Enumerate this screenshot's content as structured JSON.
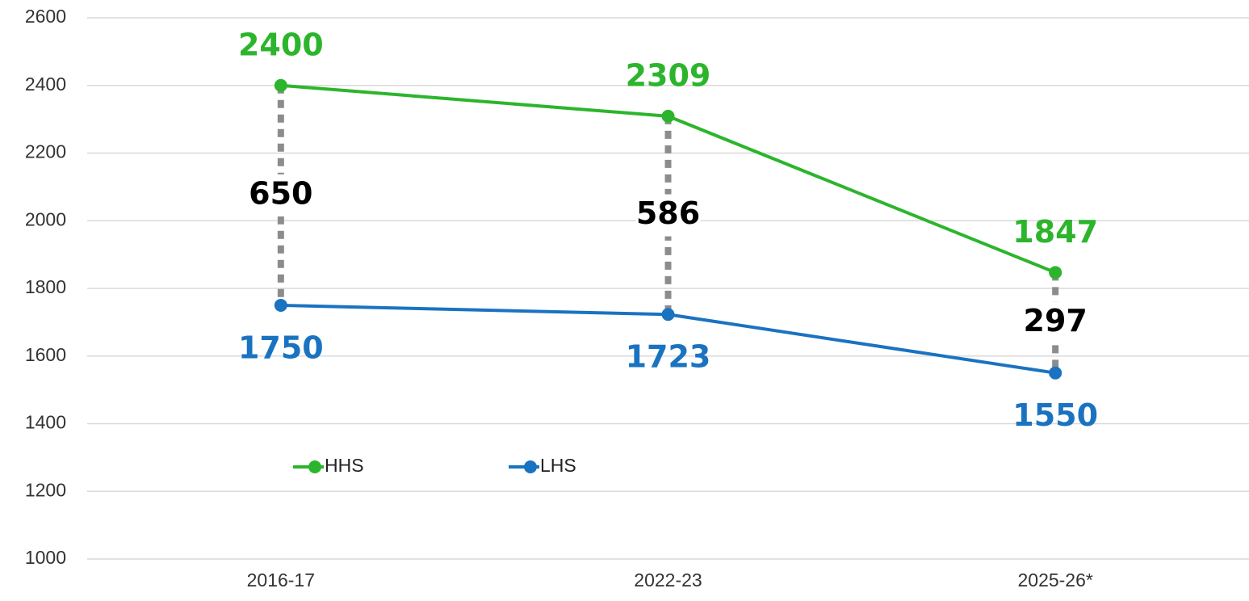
{
  "chart_data": {
    "type": "line",
    "categories": [
      "2016-17",
      "2022-23",
      "2025-26*"
    ],
    "series": [
      {
        "name": "HHS",
        "color": "#2cb52c",
        "values": [
          2400,
          2309,
          1847
        ]
      },
      {
        "name": "LHS",
        "color": "#1a73c0",
        "values": [
          1750,
          1723,
          1550
        ]
      }
    ],
    "differences": [
      650,
      586,
      297
    ],
    "ylim": [
      1000,
      2600
    ],
    "yticks": [
      1000,
      1200,
      1400,
      1600,
      1800,
      2000,
      2200,
      2400,
      2600
    ],
    "grid": true,
    "legend": "lower left"
  }
}
